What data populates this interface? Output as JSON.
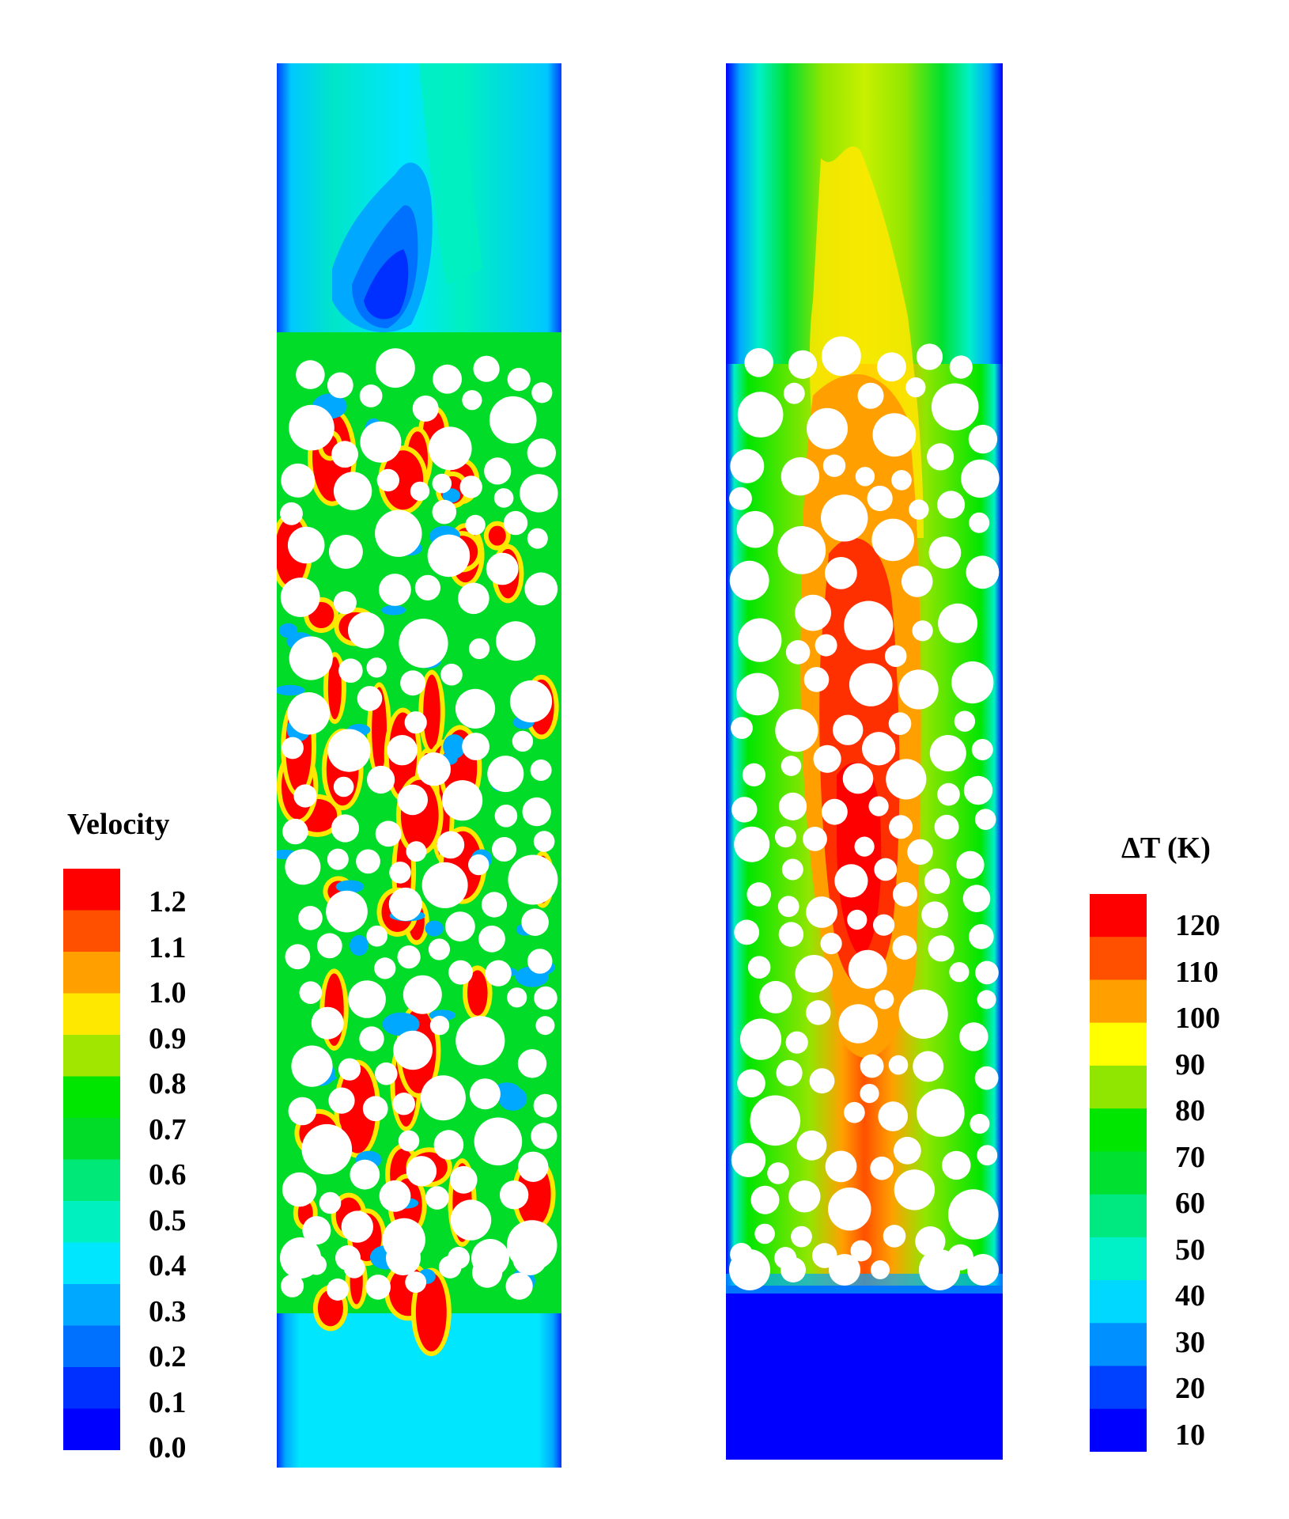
{
  "chart_data": [
    {
      "type": "heatmap",
      "title": "",
      "field": "velocity",
      "colorbar": {
        "title": "Velocity",
        "ticks": [
          "1.2",
          "1.1",
          "1.0",
          "0.9",
          "0.8",
          "0.7",
          "0.6",
          "0.5",
          "0.4",
          "0.3",
          "0.2",
          "0.1",
          "0.0"
        ],
        "range": [
          0.0,
          1.25
        ],
        "levels": 13,
        "colors": [
          "#0000ff",
          "#0030ff",
          "#0070ff",
          "#00a8ff",
          "#00e6ff",
          "#00f0c0",
          "#00e878",
          "#00dc28",
          "#00e600",
          "#a0e600",
          "#ffe800",
          "#ffa000",
          "#ff5000",
          "#ff0000"
        ]
      },
      "description_values": {
        "inlet_velocity": 0.3,
        "peak_pore_velocity": 1.2,
        "outlet_wake_min": 0.1
      }
    },
    {
      "type": "heatmap",
      "title": "",
      "field": "temperature rise",
      "colorbar": {
        "title": "ΔT (K)",
        "ticks": [
          "120",
          "110",
          "100",
          "90",
          "80",
          "70",
          "60",
          "50",
          "40",
          "30",
          "20",
          "10"
        ],
        "range": [
          5,
          125
        ],
        "levels": 12,
        "colors": [
          "#0000ff",
          "#0040ff",
          "#0090ff",
          "#00d8ff",
          "#00f0c8",
          "#00e880",
          "#00e030",
          "#00e600",
          "#90e600",
          "#ffff00",
          "#ffa000",
          "#ff5000",
          "#ff0000"
        ]
      },
      "description_values": {
        "inlet_dT": 10,
        "core_max_dT": 120
      }
    }
  ]
}
